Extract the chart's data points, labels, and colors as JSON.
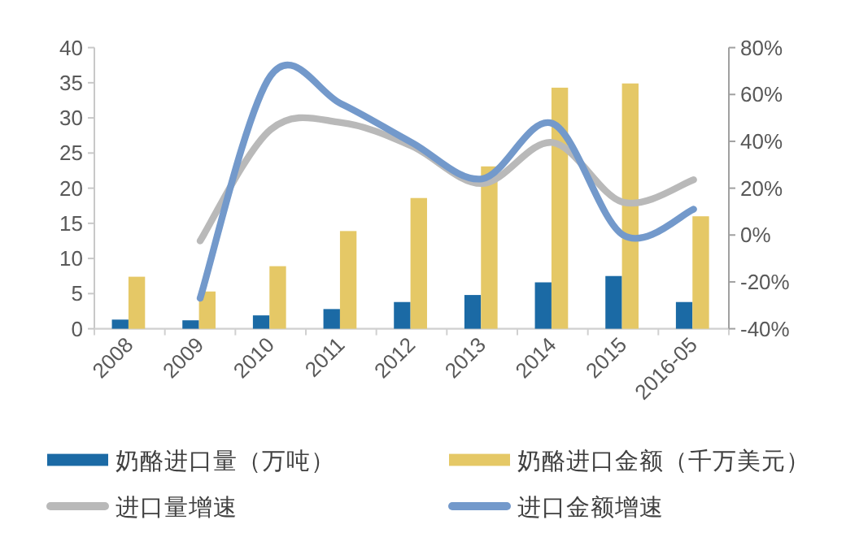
{
  "chart_data": {
    "type": "bar",
    "categories": [
      "2008",
      "2009",
      "2010",
      "2011",
      "2012",
      "2013",
      "2014",
      "2015",
      "2016-05"
    ],
    "series": [
      {
        "name": "奶酪进口量（万吨）",
        "color": "#1b6aa5",
        "values": [
          1.3,
          1.2,
          1.9,
          2.8,
          3.8,
          4.8,
          6.6,
          7.5,
          3.8
        ]
      },
      {
        "name": "奶酪进口金额（千万美元）",
        "color": "#e5c866",
        "values": [
          7.4,
          5.3,
          8.9,
          13.9,
          18.6,
          23.1,
          34.3,
          34.9,
          16.0
        ]
      },
      {
        "name": "进口量增速",
        "type": "line",
        "axis": "y2",
        "color": "#b9b9b9",
        "values": [
          null,
          -2.5,
          45,
          48,
          38,
          22,
          39.5,
          14,
          23.6
        ]
      },
      {
        "name": "进口金额增速",
        "type": "line",
        "axis": "y2",
        "color": "#7399cb",
        "values": [
          null,
          -27,
          68,
          56,
          39.5,
          24,
          47.6,
          0,
          11
        ]
      }
    ],
    "ylim": [
      0,
      40
    ],
    "yticks": [
      0,
      5,
      10,
      15,
      20,
      25,
      30,
      35,
      40
    ],
    "y2lim": [
      -40,
      80
    ],
    "y2ticks": [
      {
        "value": -40,
        "label": "-40%"
      },
      {
        "value": -20,
        "label": "-20%"
      },
      {
        "value": 0,
        "label": "0%"
      },
      {
        "value": 20,
        "label": "20%"
      },
      {
        "value": 40,
        "label": "40%"
      },
      {
        "value": 60,
        "label": "60%"
      },
      {
        "value": 80,
        "label": "80%"
      }
    ],
    "legend": "bottom"
  }
}
